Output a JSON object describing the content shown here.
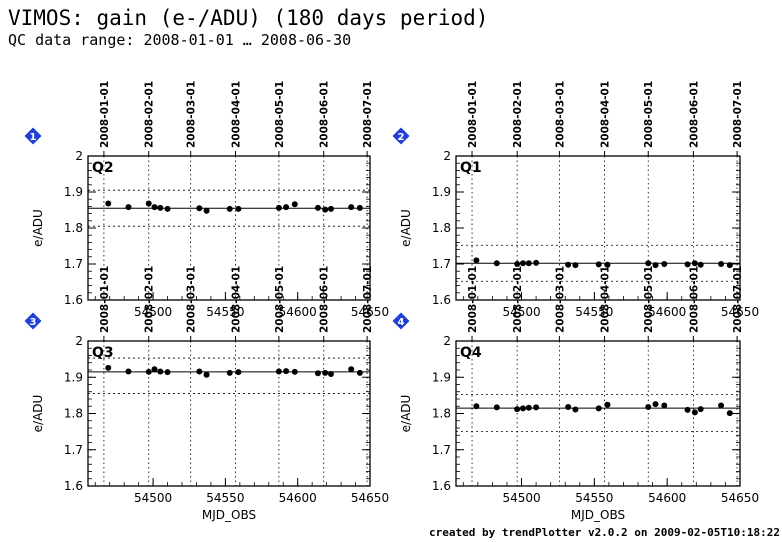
{
  "header": {
    "title": "VIMOS: gain (e-/ADU) (180 days period)",
    "subtitle": "QC data range: 2008-01-01 … 2008-06-30"
  },
  "footer": {
    "credit": "created by trendPlotter v2.0.2 on 2009-02-05T10:18:22"
  },
  "colors": {
    "marker": "#000000",
    "badge": "#1f3fd6",
    "badge_text": "#ffffff",
    "grid": "#000000"
  },
  "chart_data": [
    {
      "type": "scatter",
      "panel": "1",
      "label": "Q2",
      "xlabel": "",
      "ylabel": "e/ADU",
      "xlim": [
        54455,
        54650
      ],
      "ylim": [
        1.6,
        2.0
      ],
      "xticks": [
        54500,
        54550,
        54600,
        54650
      ],
      "yticks": [
        "1.6",
        "1.7",
        "1.8",
        "1.9",
        "2"
      ],
      "date_ticks": [
        {
          "label": "2008-01-01",
          "mjd": 54466
        },
        {
          "label": "2008-02-01",
          "mjd": 54497
        },
        {
          "label": "2008-03-01",
          "mjd": 54526
        },
        {
          "label": "2008-04-01",
          "mjd": 54557
        },
        {
          "label": "2008-05-01",
          "mjd": 54587
        },
        {
          "label": "2008-06-01",
          "mjd": 54618
        },
        {
          "label": "2008-07-01",
          "mjd": 54648
        }
      ],
      "mean": 1.855,
      "band": [
        1.805,
        1.905
      ],
      "points": [
        [
          54469,
          1.868
        ],
        [
          54483,
          1.858
        ],
        [
          54497,
          1.868
        ],
        [
          54501,
          1.858
        ],
        [
          54505,
          1.856
        ],
        [
          54510,
          1.853
        ],
        [
          54532,
          1.855
        ],
        [
          54537,
          1.848
        ],
        [
          54553,
          1.853
        ],
        [
          54559,
          1.853
        ],
        [
          54587,
          1.856
        ],
        [
          54592,
          1.858
        ],
        [
          54598,
          1.866
        ],
        [
          54614,
          1.856
        ],
        [
          54619,
          1.851
        ],
        [
          54623,
          1.853
        ],
        [
          54637,
          1.858
        ],
        [
          54643,
          1.856
        ]
      ]
    },
    {
      "type": "scatter",
      "panel": "2",
      "label": "Q1",
      "xlabel": "",
      "ylabel": "e/ADU",
      "xlim": [
        54455,
        54650
      ],
      "ylim": [
        1.6,
        2.0
      ],
      "xticks": [
        54500,
        54550,
        54600,
        54650
      ],
      "yticks": [
        "1.6",
        "1.7",
        "1.8",
        "1.9",
        "2"
      ],
      "date_ticks": [
        {
          "label": "2008-01-01",
          "mjd": 54466
        },
        {
          "label": "2008-02-01",
          "mjd": 54497
        },
        {
          "label": "2008-03-01",
          "mjd": 54526
        },
        {
          "label": "2008-04-01",
          "mjd": 54557
        },
        {
          "label": "2008-05-01",
          "mjd": 54587
        },
        {
          "label": "2008-06-01",
          "mjd": 54618
        },
        {
          "label": "2008-07-01",
          "mjd": 54648
        }
      ],
      "mean": 1.702,
      "band": [
        1.652,
        1.752
      ],
      "points": [
        [
          54469,
          1.71
        ],
        [
          54483,
          1.702
        ],
        [
          54497,
          1.7
        ],
        [
          54501,
          1.702
        ],
        [
          54505,
          1.702
        ],
        [
          54510,
          1.703
        ],
        [
          54532,
          1.698
        ],
        [
          54537,
          1.697
        ],
        [
          54553,
          1.699
        ],
        [
          54559,
          1.698
        ],
        [
          54587,
          1.702
        ],
        [
          54592,
          1.697
        ],
        [
          54598,
          1.7
        ],
        [
          54614,
          1.699
        ],
        [
          54619,
          1.702
        ],
        [
          54623,
          1.698
        ],
        [
          54637,
          1.7
        ],
        [
          54643,
          1.697
        ]
      ]
    },
    {
      "type": "scatter",
      "panel": "3",
      "label": "Q3",
      "xlabel": "MJD_OBS",
      "ylabel": "e/ADU",
      "xlim": [
        54455,
        54650
      ],
      "ylim": [
        1.6,
        2.0
      ],
      "xticks": [
        54500,
        54550,
        54600,
        54650
      ],
      "yticks": [
        "1.6",
        "1.7",
        "1.8",
        "1.9",
        "2"
      ],
      "date_ticks": [
        {
          "label": "2008-01-01",
          "mjd": 54466
        },
        {
          "label": "2008-02-01",
          "mjd": 54497
        },
        {
          "label": "2008-03-01",
          "mjd": 54526
        },
        {
          "label": "2008-04-01",
          "mjd": 54557
        },
        {
          "label": "2008-05-01",
          "mjd": 54587
        },
        {
          "label": "2008-06-01",
          "mjd": 54618
        },
        {
          "label": "2008-07-01",
          "mjd": 54648
        }
      ],
      "mean": 1.915,
      "band": [
        1.855,
        1.953
      ],
      "points": [
        [
          54469,
          1.926
        ],
        [
          54483,
          1.916
        ],
        [
          54497,
          1.915
        ],
        [
          54501,
          1.922
        ],
        [
          54505,
          1.916
        ],
        [
          54510,
          1.914
        ],
        [
          54532,
          1.916
        ],
        [
          54537,
          1.907
        ],
        [
          54553,
          1.912
        ],
        [
          54559,
          1.914
        ],
        [
          54587,
          1.916
        ],
        [
          54592,
          1.917
        ],
        [
          54598,
          1.915
        ],
        [
          54614,
          1.911
        ],
        [
          54619,
          1.912
        ],
        [
          54623,
          1.909
        ],
        [
          54637,
          1.922
        ],
        [
          54643,
          1.912
        ]
      ]
    },
    {
      "type": "scatter",
      "panel": "4",
      "label": "Q4",
      "xlabel": "MJD_OBS",
      "ylabel": "e/ADU",
      "xlim": [
        54455,
        54650
      ],
      "ylim": [
        1.6,
        2.0
      ],
      "xticks": [
        54500,
        54550,
        54600,
        54650
      ],
      "yticks": [
        "1.6",
        "1.7",
        "1.8",
        "1.9",
        "2"
      ],
      "date_ticks": [
        {
          "label": "2008-01-01",
          "mjd": 54466
        },
        {
          "label": "2008-02-01",
          "mjd": 54497
        },
        {
          "label": "2008-03-01",
          "mjd": 54526
        },
        {
          "label": "2008-04-01",
          "mjd": 54557
        },
        {
          "label": "2008-05-01",
          "mjd": 54587
        },
        {
          "label": "2008-06-01",
          "mjd": 54618
        },
        {
          "label": "2008-07-01",
          "mjd": 54648
        }
      ],
      "mean": 1.815,
      "band": [
        1.75,
        1.852
      ],
      "points": [
        [
          54469,
          1.82
        ],
        [
          54483,
          1.817
        ],
        [
          54497,
          1.812
        ],
        [
          54501,
          1.814
        ],
        [
          54505,
          1.816
        ],
        [
          54510,
          1.817
        ],
        [
          54532,
          1.818
        ],
        [
          54537,
          1.811
        ],
        [
          54553,
          1.814
        ],
        [
          54559,
          1.824
        ],
        [
          54587,
          1.818
        ],
        [
          54592,
          1.826
        ],
        [
          54598,
          1.822
        ],
        [
          54614,
          1.81
        ],
        [
          54619,
          1.803
        ],
        [
          54623,
          1.812
        ],
        [
          54637,
          1.822
        ],
        [
          54643,
          1.801
        ]
      ]
    }
  ]
}
